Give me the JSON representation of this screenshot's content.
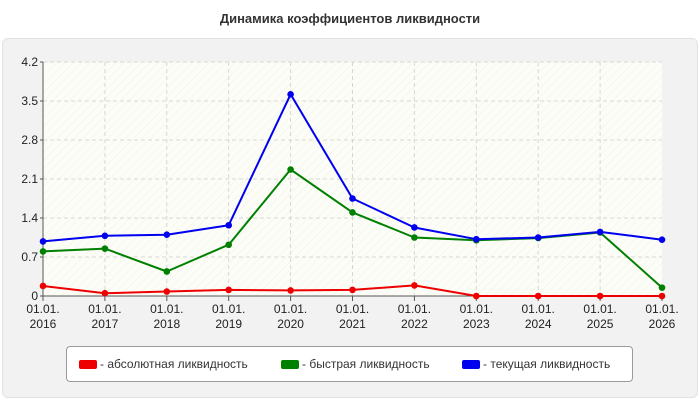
{
  "chart_data": {
    "type": "line",
    "title": "Динамика коэффициентов ликвидности",
    "xlabel": "",
    "ylabel": "",
    "categories": [
      [
        "01.01.",
        "2016"
      ],
      [
        "01.01.",
        "2017"
      ],
      [
        "01.01.",
        "2018"
      ],
      [
        "01.01.",
        "2019"
      ],
      [
        "01.01.",
        "2020"
      ],
      [
        "01.01.",
        "2021"
      ],
      [
        "01.01.",
        "2022"
      ],
      [
        "01.01.",
        "2023"
      ],
      [
        "01.01.",
        "2024"
      ],
      [
        "01.01.",
        "2025"
      ],
      [
        "01.01.",
        "2026"
      ]
    ],
    "yticks": [
      "0",
      "0.7",
      "1.4",
      "2.1",
      "2.8",
      "3.5",
      "4.2"
    ],
    "ylim": [
      0,
      4.2
    ],
    "grid": true,
    "legend_position": "bottom",
    "series": [
      {
        "name": "- абсолютная ликвидность",
        "color": "#ee0000",
        "values": [
          0.18,
          0.05,
          0.08,
          0.11,
          0.1,
          0.11,
          0.19,
          0.0,
          0.0,
          0.0,
          0.0
        ]
      },
      {
        "name": "- быстрая ликвидность",
        "color": "#008000",
        "values": [
          0.8,
          0.85,
          0.44,
          0.92,
          2.27,
          1.5,
          1.05,
          1.0,
          1.04,
          1.14,
          0.15
        ]
      },
      {
        "name": "- текущая ликвидность",
        "color": "#0000ee",
        "values": [
          0.98,
          1.08,
          1.1,
          1.27,
          3.62,
          1.75,
          1.23,
          1.02,
          1.05,
          1.15,
          1.01
        ]
      }
    ]
  }
}
